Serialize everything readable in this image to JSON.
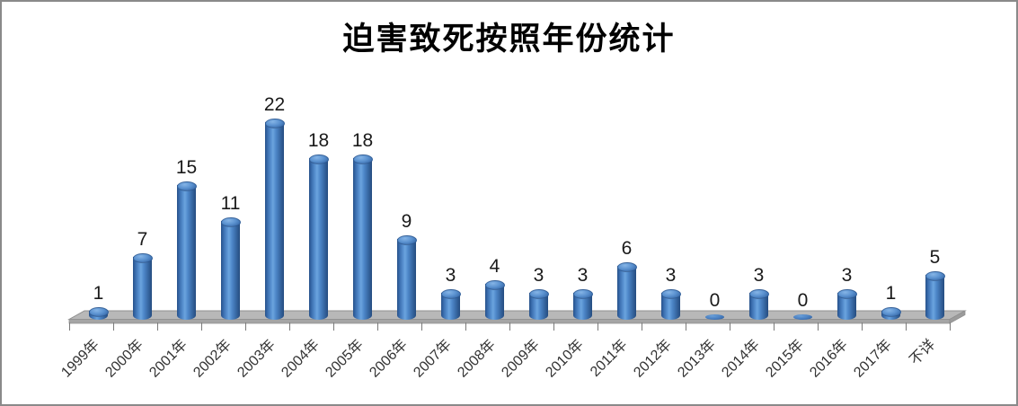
{
  "title": "迫害致死按照年份统计",
  "chart_data": {
    "type": "bar",
    "style": "3d-cylinder",
    "title": "迫害致死按照年份统计",
    "categories": [
      "1999年",
      "2000年",
      "2001年",
      "2002年",
      "2003年",
      "2004年",
      "2005年",
      "2006年",
      "2007年",
      "2008年",
      "2009年",
      "2010年",
      "2011年",
      "2012年",
      "2013年",
      "2014年",
      "2015年",
      "2016年",
      "2017年",
      "不详"
    ],
    "values": [
      1,
      7,
      15,
      11,
      22,
      18,
      18,
      9,
      3,
      4,
      3,
      3,
      6,
      3,
      0,
      3,
      0,
      3,
      1,
      5
    ],
    "data_labels_shown": true,
    "xlabel": "",
    "ylabel": "",
    "ylim": [
      0,
      22
    ],
    "legend": "none",
    "grid": "off",
    "y_axis_shown": false,
    "x_tick_rotation": -45,
    "colors": {
      "bar_fill": "#3f76bb",
      "bar_highlight": "#6ba4de",
      "bar_shadow": "#254c80",
      "floor_top": "#b8b8b8",
      "floor_front": "#a5a5a5",
      "floor_edge": "#8f8f8f",
      "frame_border": "#8a8a8a",
      "data_label": "#1a1a1a",
      "axis_label": "#333333",
      "background": "#ffffff"
    }
  }
}
